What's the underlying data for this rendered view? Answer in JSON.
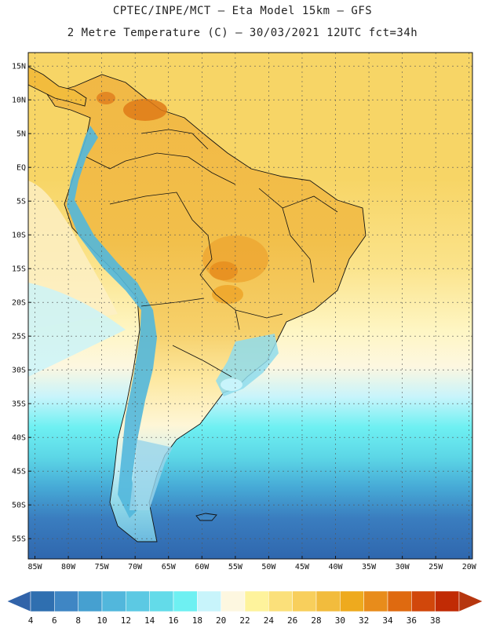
{
  "titles": {
    "line1": "CPTEC/INPE/MCT –  Eta Model 15km – GFS",
    "line2": "2 Metre Temperature (C) – 30/03/2021 12UTC fct=34h"
  },
  "map": {
    "lon_range": [
      -86,
      -19.5
    ],
    "lat_range": [
      -58,
      17
    ],
    "lat_ticks": [
      "15N",
      "10N",
      "5N",
      "EQ",
      "5S",
      "10S",
      "15S",
      "20S",
      "25S",
      "30S",
      "35S",
      "40S",
      "45S",
      "50S",
      "55S"
    ],
    "lat_values": [
      15,
      10,
      5,
      0,
      -5,
      -10,
      -15,
      -20,
      -25,
      -30,
      -35,
      -40,
      -45,
      -50,
      -55
    ],
    "lon_ticks": [
      "85W",
      "80W",
      "75W",
      "70W",
      "65W",
      "60W",
      "55W",
      "50W",
      "45W",
      "40W",
      "35W",
      "30W",
      "25W",
      "20W"
    ],
    "lon_values": [
      -85,
      -80,
      -75,
      -70,
      -65,
      -60,
      -55,
      -50,
      -45,
      -40,
      -35,
      -30,
      -25,
      -20
    ],
    "grid": true
  },
  "colorbar": {
    "labels": [
      "4",
      "6",
      "8",
      "10",
      "12",
      "14",
      "16",
      "18",
      "20",
      "22",
      "24",
      "26",
      "28",
      "30",
      "32",
      "34",
      "36",
      "38"
    ],
    "colors": [
      "#2f6fb0",
      "#3f86c4",
      "#46a0d0",
      "#52b7dc",
      "#5cc9e3",
      "#63dbe9",
      "#6ef0f2",
      "#c8f4fb",
      "#fdf7e0",
      "#fef39c",
      "#fbe07a",
      "#f8cf5c",
      "#f2bc3d",
      "#eeaa1e",
      "#e88c1b",
      "#df6a10",
      "#d1470b",
      "#c12b05"
    ],
    "below_color": "#3163a9",
    "above_color": "#b6360f"
  }
}
